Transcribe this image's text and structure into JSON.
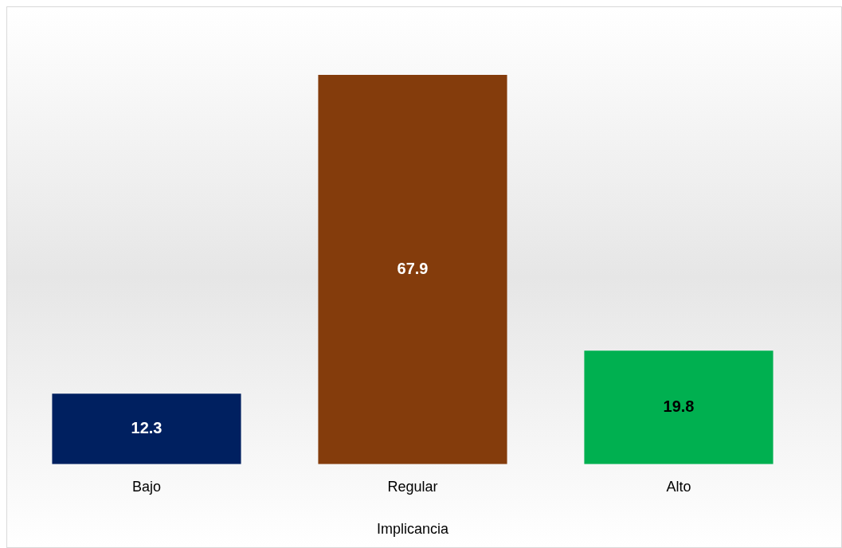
{
  "chart_data": {
    "type": "bar",
    "xlabel": "Implicancia",
    "categories": [
      "Bajo",
      "Regular",
      "Alto"
    ],
    "series": [
      {
        "colors": [
          "#002060",
          "#843c0c",
          "#00b050"
        ],
        "values": [
          12.3,
          67.9,
          19.8
        ]
      }
    ],
    "relative": false,
    "data_labels": true,
    "grid": false,
    "legend": false
  }
}
